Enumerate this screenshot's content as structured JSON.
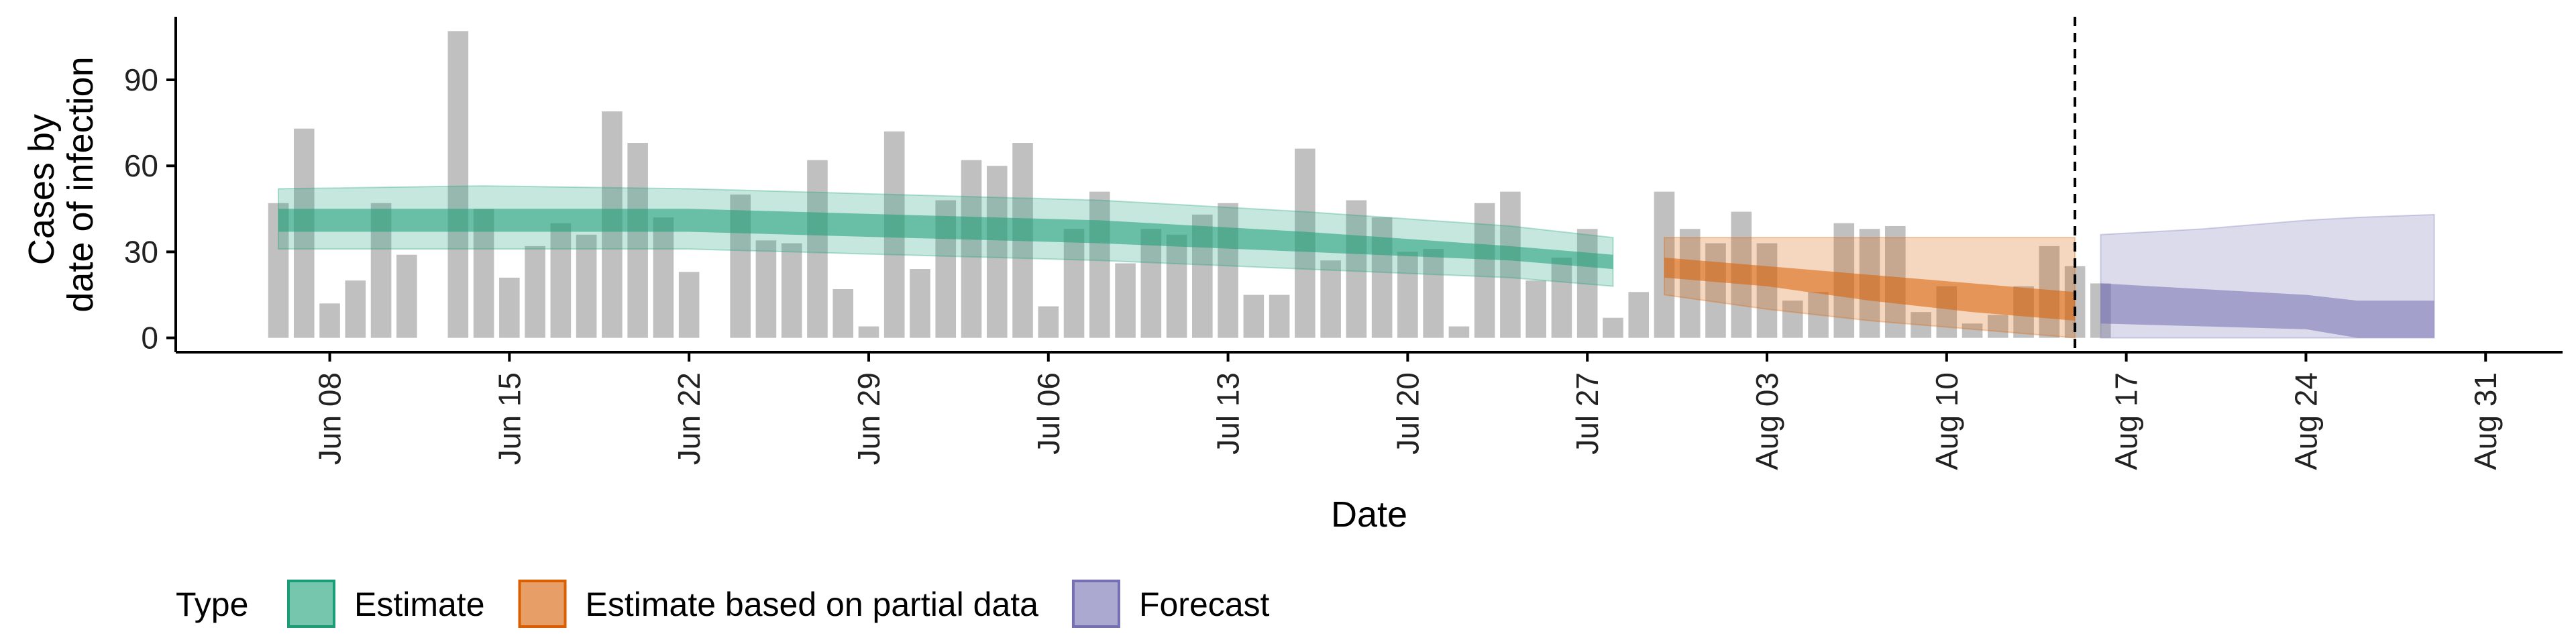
{
  "colors": {
    "observed_bar": "#bdbdbd",
    "estimate": "#1b9e77",
    "partial": "#d95f02",
    "forecast": "#7570b3",
    "axis": "#000000",
    "vline": "#000000"
  },
  "chart_data": {
    "type": "bar",
    "xlabel": "Date",
    "ylabel": "Cases by date of infection",
    "ylabel_lines": [
      "Cases by",
      "date of infection"
    ],
    "ylim": [
      -5,
      112
    ],
    "xlim": [
      "2020-06-02",
      "2020-09-03"
    ],
    "yticks": [
      0,
      30,
      60,
      90
    ],
    "xticks": [
      {
        "date": "2020-06-08",
        "label": "Jun 08"
      },
      {
        "date": "2020-06-15",
        "label": "Jun 15"
      },
      {
        "date": "2020-06-22",
        "label": "Jun 22"
      },
      {
        "date": "2020-06-29",
        "label": "Jun 29"
      },
      {
        "date": "2020-07-06",
        "label": "Jul 06"
      },
      {
        "date": "2020-07-13",
        "label": "Jul 13"
      },
      {
        "date": "2020-07-20",
        "label": "Jul 20"
      },
      {
        "date": "2020-07-27",
        "label": "Jul 27"
      },
      {
        "date": "2020-08-03",
        "label": "Aug 03"
      },
      {
        "date": "2020-08-10",
        "label": "Aug 10"
      },
      {
        "date": "2020-08-17",
        "label": "Aug 17"
      },
      {
        "date": "2020-08-24",
        "label": "Aug 24"
      },
      {
        "date": "2020-08-31",
        "label": "Aug 31"
      }
    ],
    "vline_date": "2020-08-15",
    "observed": {
      "start_date": "2020-06-06",
      "values": [
        47,
        73,
        12,
        20,
        47,
        29,
        0,
        107,
        45,
        21,
        32,
        40,
        36,
        79,
        68,
        42,
        23,
        0,
        50,
        34,
        33,
        62,
        17,
        4,
        72,
        24,
        48,
        62,
        60,
        68,
        11,
        38,
        51,
        26,
        38,
        36,
        43,
        47,
        15,
        15,
        66,
        27,
        48,
        42,
        30,
        31,
        4,
        47,
        51,
        20,
        28,
        38,
        7,
        16,
        51,
        38,
        33,
        44,
        33,
        13,
        16,
        40,
        38,
        39,
        9,
        18,
        5,
        8,
        18,
        32,
        25,
        19
      ]
    },
    "bands": [
      {
        "type": "Estimate",
        "color_key": "estimate",
        "dates": [
          "2020-06-06",
          "2020-06-14",
          "2020-06-22",
          "2020-06-30",
          "2020-07-08",
          "2020-07-16",
          "2020-07-24",
          "2020-07-28"
        ],
        "outer_lower": [
          31,
          31,
          31,
          29,
          27,
          24,
          21,
          18
        ],
        "outer_upper": [
          52,
          53,
          52,
          50,
          48,
          44,
          39,
          35
        ],
        "inner_lower": [
          37,
          37,
          37,
          35,
          33,
          30,
          27,
          24
        ],
        "inner_upper": [
          45,
          45,
          45,
          43,
          41,
          37,
          32,
          29
        ]
      },
      {
        "type": "Estimate based on partial data",
        "color_key": "partial",
        "dates": [
          "2020-07-30",
          "2020-08-03",
          "2020-08-07",
          "2020-08-11",
          "2020-08-15"
        ],
        "outer_lower": [
          15,
          10,
          6,
          3,
          0
        ],
        "outer_upper": [
          35,
          35,
          35,
          35,
          35
        ],
        "inner_lower": [
          21,
          18,
          13,
          9,
          6
        ],
        "inner_upper": [
          28,
          25,
          22,
          19,
          16
        ]
      },
      {
        "type": "Forecast",
        "color_key": "forecast",
        "dates": [
          "2020-08-16",
          "2020-08-20",
          "2020-08-24",
          "2020-08-26",
          "2020-08-29"
        ],
        "outer_lower": [
          0,
          0,
          0,
          0,
          0
        ],
        "outer_upper": [
          36,
          38,
          41,
          42,
          43
        ],
        "inner_lower": [
          5,
          4,
          3,
          0,
          0
        ],
        "inner_upper": [
          19,
          17,
          15,
          13,
          13
        ]
      }
    ],
    "legend": {
      "title": "Type",
      "placement": "bottom",
      "items": [
        {
          "label": "Estimate",
          "color_key": "estimate"
        },
        {
          "label": "Estimate based on partial data",
          "color_key": "partial"
        },
        {
          "label": "Forecast",
          "color_key": "forecast"
        }
      ]
    }
  }
}
